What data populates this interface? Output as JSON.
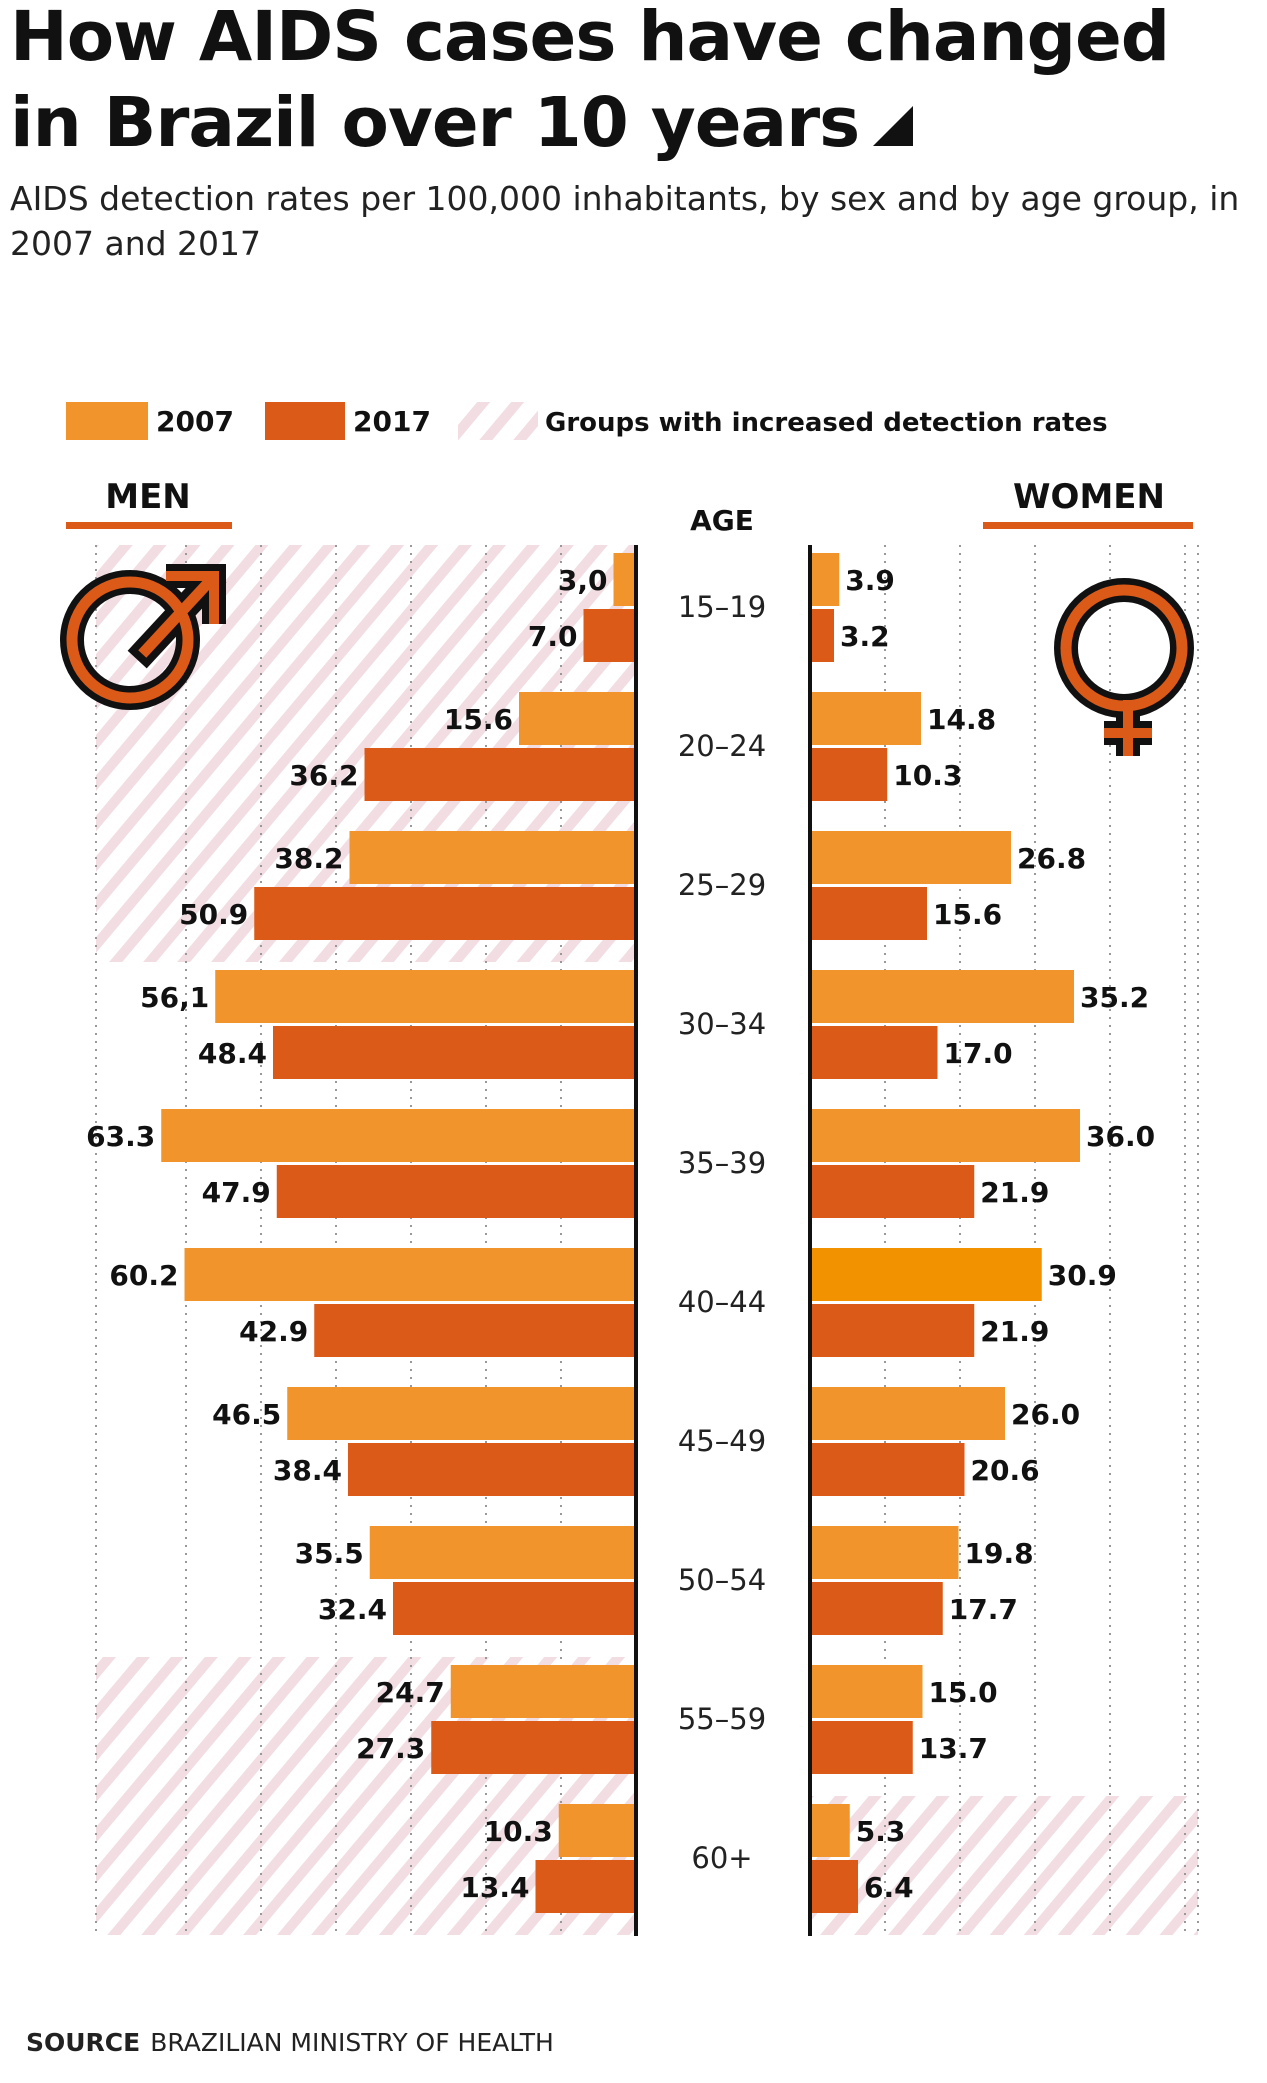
{
  "title": "How AIDS cases have changed in Brazil over 10 years",
  "subtitle": "AIDS detection rates per 100,000 inhabitants, by sex and by age group, in 2007 and 2017",
  "source_label": "SOURCE",
  "source_text": "BRAZILIAN MINISTRY OF HEALTH",
  "colors": {
    "y2007": "#f2942c",
    "y2017": "#dc5a17",
    "highlight_2007": "#f29200",
    "hatch": "#f2dde3",
    "axis": "#111111",
    "text": "#111111"
  },
  "icons": {
    "men": "male-symbol-icon",
    "women": "female-symbol-icon"
  },
  "chart_data": {
    "type": "bar",
    "orientation": "horizontal-butterfly",
    "legend": [
      {
        "label": "2007",
        "color": "#f2942c"
      },
      {
        "label": "2017",
        "color": "#dc5a17"
      },
      {
        "label": "Groups with increased detection rates",
        "pattern": "hatch"
      }
    ],
    "legend_position": "top",
    "axis_title": "AGE",
    "panels": {
      "left": "MEN",
      "right": "WOMEN"
    },
    "categories": [
      "15–19",
      "20–24",
      "25–29",
      "30–34",
      "35–39",
      "40–44",
      "45–49",
      "50–54",
      "55–59",
      "60+"
    ],
    "grid": true,
    "xlim": [
      0,
      65
    ],
    "series": [
      {
        "name": "2007",
        "panel": "MEN",
        "values": [
          3.0,
          15.6,
          38.2,
          56.1,
          63.3,
          60.2,
          46.5,
          35.5,
          24.7,
          10.3
        ],
        "labels": [
          "3,0",
          "15.6",
          "38.2",
          "56,1",
          "63.3",
          "60.2",
          "46.5",
          "35.5",
          "24.7",
          "10.3"
        ]
      },
      {
        "name": "2017",
        "panel": "MEN",
        "values": [
          7.0,
          36.2,
          50.9,
          48.4,
          47.9,
          42.9,
          38.4,
          32.4,
          27.3,
          13.4
        ],
        "labels": [
          "7.0",
          "36.2",
          "50.9",
          "48.4",
          "47.9",
          "42.9",
          "38.4",
          "32.4",
          "27.3",
          "13.4"
        ]
      },
      {
        "name": "2007",
        "panel": "WOMEN",
        "values": [
          3.9,
          14.8,
          26.8,
          35.2,
          36.0,
          30.9,
          26.0,
          19.8,
          15.0,
          5.3
        ],
        "labels": [
          "3.9",
          "14.8",
          "26.8",
          "35.2",
          "36.0",
          "30.9",
          "26.0",
          "19.8",
          "15.0",
          "5.3"
        ]
      },
      {
        "name": "2017",
        "panel": "WOMEN",
        "values": [
          3.2,
          10.3,
          15.6,
          17.0,
          21.9,
          21.9,
          20.6,
          17.7,
          13.7,
          6.4
        ],
        "labels": [
          "3.2",
          "10.3",
          "15.6",
          "17.0",
          "21.9",
          "21.9",
          "20.6",
          "17.7",
          "13.7",
          "6.4"
        ]
      }
    ],
    "increased_groups": {
      "MEN": [
        "15–19",
        "20–24",
        "25–29",
        "55–59",
        "60+"
      ],
      "WOMEN": [
        "60+"
      ]
    }
  }
}
